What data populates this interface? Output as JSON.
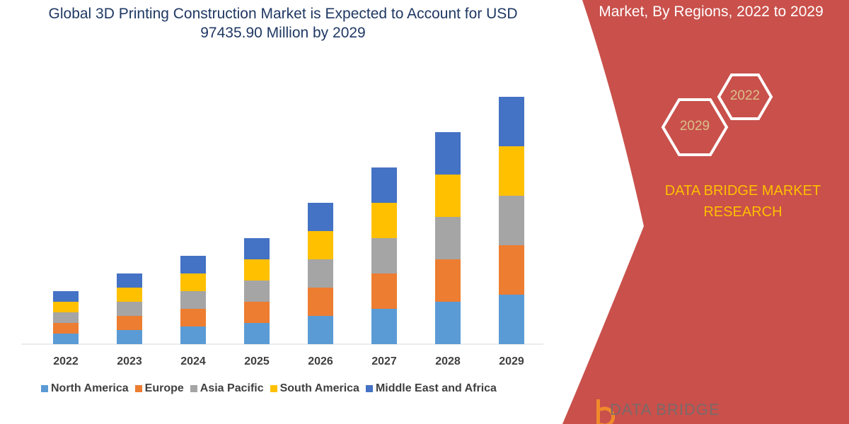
{
  "title": "Global 3D Printing Construction Market is Expected to Account for USD 97435.90 Million by 2029",
  "subtitle": "Market, By Regions, 2022 to 2029",
  "hexagons": [
    "2022",
    "2029"
  ],
  "brand_text": "DATA BRIDGE MARKET RESEARCH",
  "logo_text": "DATA BRIDGE",
  "colors": {
    "panel": "#c9504b",
    "title": "#1f3864",
    "brand": "#ffc000"
  },
  "chart_data": {
    "type": "bar",
    "stacked": true,
    "title": "Global 3D Printing Construction Market is Expected to Account for USD 97435.90 Million by 2029",
    "categories": [
      "2022",
      "2023",
      "2024",
      "2025",
      "2026",
      "2027",
      "2028",
      "2029"
    ],
    "y_axis_shown": false,
    "grid": false,
    "legend": "bottom",
    "series": [
      {
        "name": "North America",
        "color": "#5b9bd5",
        "values": [
          15,
          20,
          25,
          30,
          40,
          50,
          60,
          70
        ]
      },
      {
        "name": "Europe",
        "color": "#ed7d31",
        "values": [
          15,
          20,
          25,
          30,
          40,
          50,
          60,
          70
        ]
      },
      {
        "name": "Asia Pacific",
        "color": "#a5a5a5",
        "values": [
          15,
          20,
          25,
          30,
          40,
          50,
          60,
          70
        ]
      },
      {
        "name": "South America",
        "color": "#ffc000",
        "values": [
          15,
          20,
          25,
          30,
          40,
          50,
          60,
          70
        ]
      },
      {
        "name": "Middle East and Africa",
        "color": "#4472c4",
        "values": [
          15,
          20,
          25,
          30,
          40,
          50,
          60,
          70
        ]
      }
    ]
  }
}
